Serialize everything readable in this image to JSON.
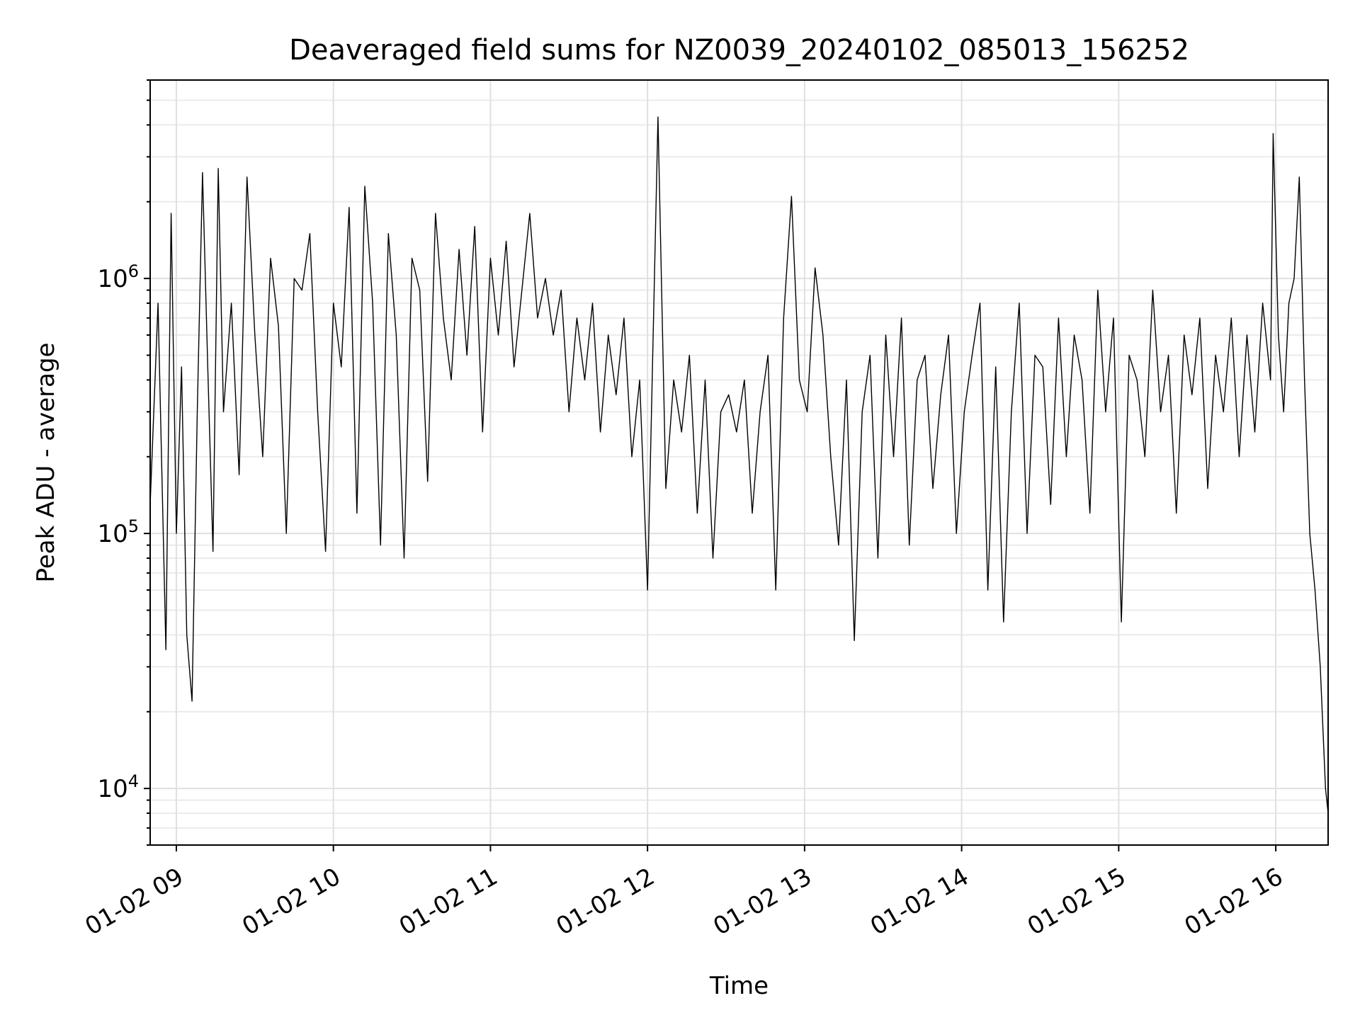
{
  "chart_data": {
    "type": "line",
    "title": "Deaveraged field sums for NZ0039_20240102_085013_156252",
    "xlabel": "Time",
    "ylabel": "Peak ADU - average",
    "x_scale": "time",
    "y_scale": "log",
    "xlim": [
      "2024-01-02 08:50",
      "2024-01-02 16:20"
    ],
    "ylim": [
      6000,
      6000000
    ],
    "grid": true,
    "legend": "none",
    "x_ticks": [
      {
        "value": "2024-01-02 09:00",
        "label": "01-02 09"
      },
      {
        "value": "2024-01-02 10:00",
        "label": "01-02 10"
      },
      {
        "value": "2024-01-02 11:00",
        "label": "01-02 11"
      },
      {
        "value": "2024-01-02 12:00",
        "label": "01-02 12"
      },
      {
        "value": "2024-01-02 13:00",
        "label": "01-02 13"
      },
      {
        "value": "2024-01-02 14:00",
        "label": "01-02 14"
      },
      {
        "value": "2024-01-02 15:00",
        "label": "01-02 15"
      },
      {
        "value": "2024-01-02 16:00",
        "label": "01-02 16"
      }
    ],
    "y_ticks": [
      {
        "value": 10000,
        "base": "10",
        "exp": "4"
      },
      {
        "value": 100000,
        "base": "10",
        "exp": "5"
      },
      {
        "value": 1000000,
        "base": "10",
        "exp": "6"
      }
    ],
    "series": [
      {
        "color": "#000000",
        "x": [
          "2024-01-02 08:50",
          "2024-01-02 08:53",
          "2024-01-02 08:56",
          "2024-01-02 08:58",
          "2024-01-02 09:00",
          "2024-01-02 09:02",
          "2024-01-02 09:04",
          "2024-01-02 09:06",
          "2024-01-02 09:08",
          "2024-01-02 09:10",
          "2024-01-02 09:12",
          "2024-01-02 09:14",
          "2024-01-02 09:16",
          "2024-01-02 09:18",
          "2024-01-02 09:21",
          "2024-01-02 09:24",
          "2024-01-02 09:27",
          "2024-01-02 09:30",
          "2024-01-02 09:33",
          "2024-01-02 09:36",
          "2024-01-02 09:39",
          "2024-01-02 09:42",
          "2024-01-02 09:45",
          "2024-01-02 09:48",
          "2024-01-02 09:51",
          "2024-01-02 09:54",
          "2024-01-02 09:57",
          "2024-01-02 10:00",
          "2024-01-02 10:03",
          "2024-01-02 10:06",
          "2024-01-02 10:09",
          "2024-01-02 10:12",
          "2024-01-02 10:15",
          "2024-01-02 10:18",
          "2024-01-02 10:21",
          "2024-01-02 10:24",
          "2024-01-02 10:27",
          "2024-01-02 10:30",
          "2024-01-02 10:33",
          "2024-01-02 10:36",
          "2024-01-02 10:39",
          "2024-01-02 10:42",
          "2024-01-02 10:45",
          "2024-01-02 10:48",
          "2024-01-02 10:51",
          "2024-01-02 10:54",
          "2024-01-02 10:57",
          "2024-01-02 11:00",
          "2024-01-02 11:03",
          "2024-01-02 11:06",
          "2024-01-02 11:09",
          "2024-01-02 11:12",
          "2024-01-02 11:15",
          "2024-01-02 11:18",
          "2024-01-02 11:21",
          "2024-01-02 11:24",
          "2024-01-02 11:27",
          "2024-01-02 11:30",
          "2024-01-02 11:33",
          "2024-01-02 11:36",
          "2024-01-02 11:39",
          "2024-01-02 11:42",
          "2024-01-02 11:45",
          "2024-01-02 11:48",
          "2024-01-02 11:51",
          "2024-01-02 11:54",
          "2024-01-02 11:57",
          "2024-01-02 12:00",
          "2024-01-02 12:02",
          "2024-01-02 12:04",
          "2024-01-02 12:07",
          "2024-01-02 12:10",
          "2024-01-02 12:13",
          "2024-01-02 12:16",
          "2024-01-02 12:19",
          "2024-01-02 12:22",
          "2024-01-02 12:25",
          "2024-01-02 12:28",
          "2024-01-02 12:31",
          "2024-01-02 12:34",
          "2024-01-02 12:37",
          "2024-01-02 12:40",
          "2024-01-02 12:43",
          "2024-01-02 12:46",
          "2024-01-02 12:49",
          "2024-01-02 12:52",
          "2024-01-02 12:55",
          "2024-01-02 12:58",
          "2024-01-02 13:01",
          "2024-01-02 13:04",
          "2024-01-02 13:07",
          "2024-01-02 13:10",
          "2024-01-02 13:13",
          "2024-01-02 13:16",
          "2024-01-02 13:19",
          "2024-01-02 13:22",
          "2024-01-02 13:25",
          "2024-01-02 13:28",
          "2024-01-02 13:31",
          "2024-01-02 13:34",
          "2024-01-02 13:37",
          "2024-01-02 13:40",
          "2024-01-02 13:43",
          "2024-01-02 13:46",
          "2024-01-02 13:49",
          "2024-01-02 13:52",
          "2024-01-02 13:55",
          "2024-01-02 13:58",
          "2024-01-02 14:01",
          "2024-01-02 14:04",
          "2024-01-02 14:07",
          "2024-01-02 14:10",
          "2024-01-02 14:13",
          "2024-01-02 14:16",
          "2024-01-02 14:19",
          "2024-01-02 14:22",
          "2024-01-02 14:25",
          "2024-01-02 14:28",
          "2024-01-02 14:31",
          "2024-01-02 14:34",
          "2024-01-02 14:37",
          "2024-01-02 14:40",
          "2024-01-02 14:43",
          "2024-01-02 14:46",
          "2024-01-02 14:49",
          "2024-01-02 14:52",
          "2024-01-02 14:55",
          "2024-01-02 14:58",
          "2024-01-02 15:01",
          "2024-01-02 15:04",
          "2024-01-02 15:07",
          "2024-01-02 15:10",
          "2024-01-02 15:13",
          "2024-01-02 15:16",
          "2024-01-02 15:19",
          "2024-01-02 15:22",
          "2024-01-02 15:25",
          "2024-01-02 15:28",
          "2024-01-02 15:31",
          "2024-01-02 15:34",
          "2024-01-02 15:37",
          "2024-01-02 15:40",
          "2024-01-02 15:43",
          "2024-01-02 15:46",
          "2024-01-02 15:49",
          "2024-01-02 15:52",
          "2024-01-02 15:55",
          "2024-01-02 15:58",
          "2024-01-02 15:59",
          "2024-01-02 16:01",
          "2024-01-02 16:03",
          "2024-01-02 16:05",
          "2024-01-02 16:07",
          "2024-01-02 16:09",
          "2024-01-02 16:11",
          "2024-01-02 16:13",
          "2024-01-02 16:15",
          "2024-01-02 16:17",
          "2024-01-02 16:19",
          "2024-01-02 16:20"
        ],
        "values": [
          130000,
          800000,
          35000,
          1800000,
          100000,
          450000,
          40000,
          22000,
          300000,
          2600000,
          450000,
          85000,
          2700000,
          300000,
          800000,
          170000,
          2500000,
          600000,
          200000,
          1200000,
          650000,
          100000,
          1000000,
          900000,
          1500000,
          300000,
          85000,
          800000,
          450000,
          1900000,
          120000,
          2300000,
          800000,
          90000,
          1500000,
          600000,
          80000,
          1200000,
          900000,
          160000,
          1800000,
          700000,
          400000,
          1300000,
          500000,
          1600000,
          250000,
          1200000,
          600000,
          1400000,
          450000,
          900000,
          1800000,
          700000,
          1000000,
          600000,
          900000,
          300000,
          700000,
          400000,
          800000,
          250000,
          600000,
          350000,
          700000,
          200000,
          400000,
          60000,
          500000,
          4300000,
          150000,
          400000,
          250000,
          500000,
          120000,
          400000,
          80000,
          300000,
          350000,
          250000,
          400000,
          120000,
          300000,
          500000,
          60000,
          700000,
          2100000,
          400000,
          300000,
          1100000,
          600000,
          200000,
          90000,
          400000,
          38000,
          300000,
          500000,
          80000,
          600000,
          200000,
          700000,
          90000,
          400000,
          500000,
          150000,
          350000,
          600000,
          100000,
          300000,
          500000,
          800000,
          60000,
          450000,
          45000,
          300000,
          800000,
          100000,
          500000,
          450000,
          130000,
          700000,
          200000,
          600000,
          400000,
          120000,
          900000,
          300000,
          700000,
          45000,
          500000,
          400000,
          200000,
          900000,
          300000,
          500000,
          120000,
          600000,
          350000,
          700000,
          150000,
          500000,
          300000,
          700000,
          200000,
          600000,
          250000,
          800000,
          400000,
          3700000,
          600000,
          300000,
          800000,
          1000000,
          2500000,
          400000,
          100000,
          60000,
          30000,
          10000,
          8000
        ]
      }
    ]
  }
}
